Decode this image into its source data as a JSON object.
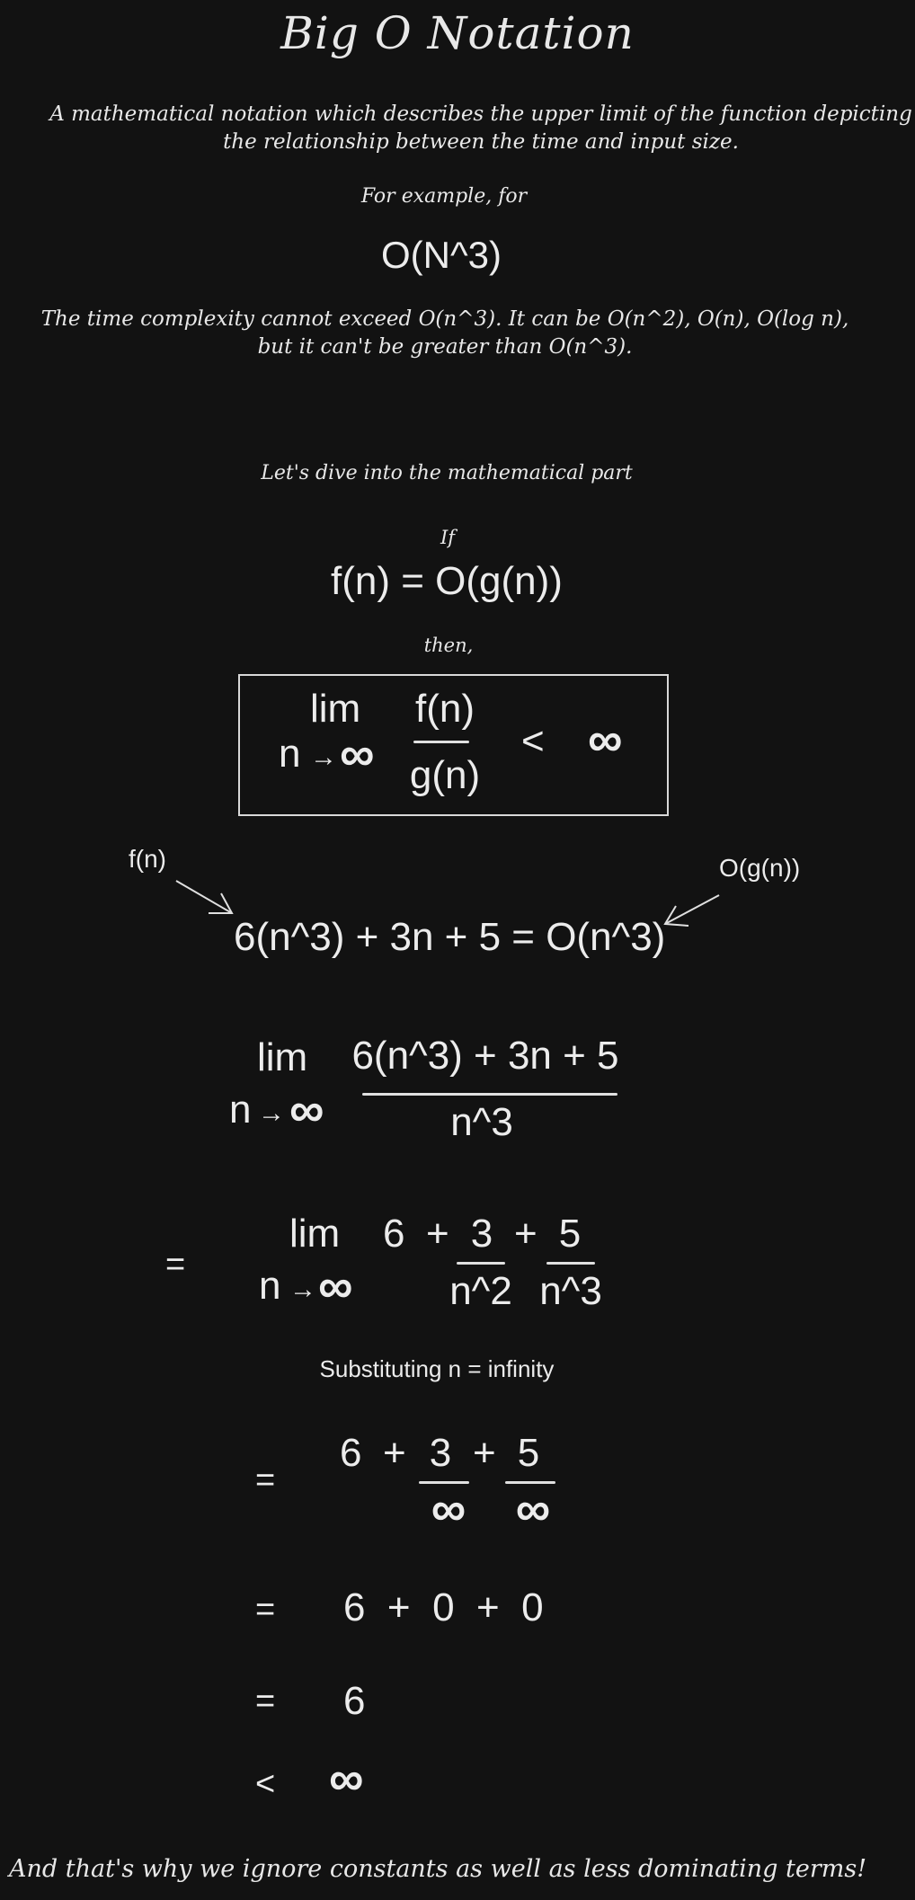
{
  "title": "Big O Notation",
  "description": "A mathematical notation which describes the upper limit of the function depicting the relationship between the time and input size.",
  "example_intro": "For example, for",
  "example_expr": "O(N^3)",
  "explanation": "The time complexity cannot exceed O(n^3). It can be O(n^2), O(n), O(log n), but it can't be greater than O(n^3).",
  "dive": "Let's dive into the mathematical part",
  "if_word": "If",
  "definition": "f(n) = O(g(n))",
  "then_word": "then,",
  "limit_def": {
    "lim": "lim",
    "var": "n",
    "arrow": "→",
    "inf": "∞",
    "numerator": "f(n)",
    "denominator": "g(n)",
    "lt": "<",
    "rhs": "∞"
  },
  "example": {
    "f_label": "f(n)",
    "g_label": "O(g(n))",
    "equation": "6(n^3) + 3n + 5 = O(n^3)"
  },
  "step1": {
    "lim": "lim",
    "var": "n",
    "arrow": "→",
    "inf": "∞",
    "numerator": "6(n^3) + 3n + 5",
    "denominator": "n^3"
  },
  "step2": {
    "eq": "=",
    "lim": "lim",
    "var": "n",
    "arrow": "→",
    "inf": "∞",
    "six": "6",
    "plus1": "+",
    "num1": "3",
    "plus2": "+",
    "num2": "5",
    "den1": "n^2",
    "den2": "n^3"
  },
  "substitute": "Substituting n = infinity",
  "step3": {
    "eq": "=",
    "six": "6",
    "plus1": "+",
    "num1": "3",
    "plus2": "+",
    "num2": "5",
    "den1": "∞",
    "den2": "∞"
  },
  "step4": {
    "eq": "=",
    "expr": "6  +  0  +  0"
  },
  "step5": {
    "eq": "=",
    "value": "6"
  },
  "step6": {
    "lt": "<",
    "value": "∞"
  },
  "conclusion": "And that's why we ignore constants as well as less dominating terms!"
}
